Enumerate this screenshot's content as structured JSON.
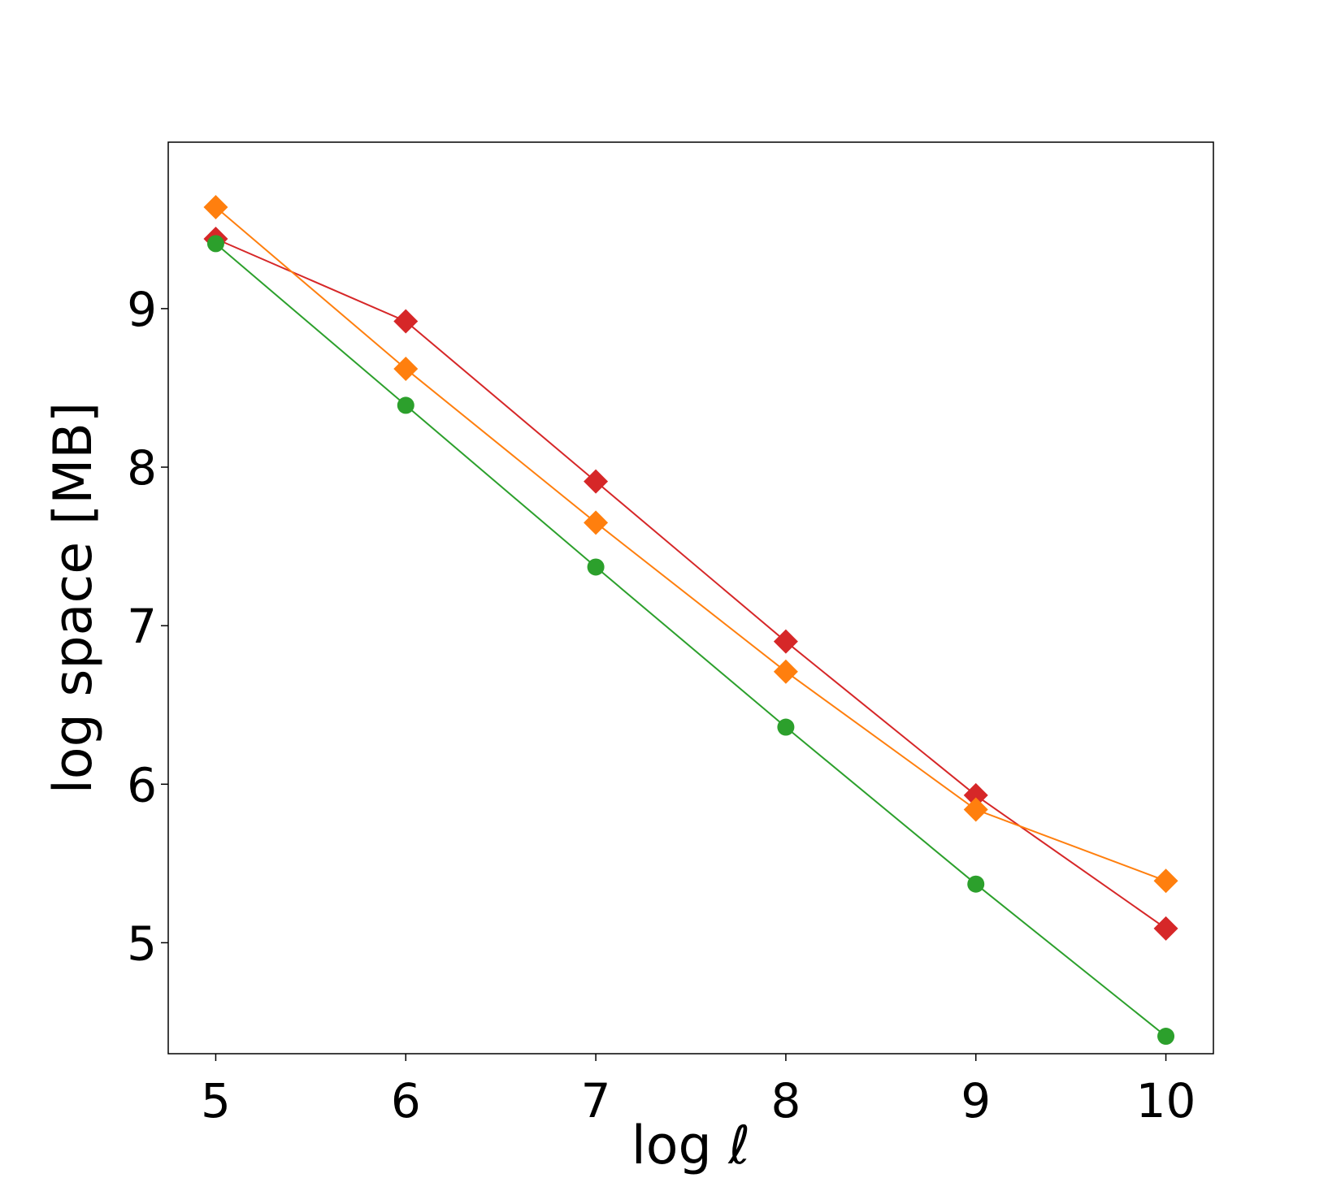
{
  "chart_data": {
    "type": "line",
    "xlabel": "log ℓ",
    "ylabel": "log space [MB]",
    "xlim": [
      4.75,
      10.25
    ],
    "ylim": [
      4.3,
      10.05
    ],
    "xticks": [
      5,
      6,
      7,
      8,
      9,
      10
    ],
    "yticks": [
      5,
      6,
      7,
      8,
      9
    ],
    "xtick_labels": [
      "5",
      "6",
      "7",
      "8",
      "9",
      "10"
    ],
    "ytick_labels": [
      "5",
      "6",
      "7",
      "8",
      "9"
    ],
    "grid": false,
    "legend": "none",
    "x": [
      5,
      6,
      7,
      8,
      9,
      10
    ],
    "series": [
      {
        "color": "#d62728",
        "marker": "diamond",
        "values": [
          9.44,
          8.92,
          7.91,
          6.9,
          5.93,
          5.09
        ]
      },
      {
        "color": "#ff7f0e",
        "marker": "diamond",
        "values": [
          9.64,
          8.62,
          7.65,
          6.71,
          5.84,
          5.39
        ]
      },
      {
        "color": "#2ca02c",
        "marker": "circle",
        "values": [
          9.41,
          8.39,
          7.37,
          6.36,
          5.37,
          4.41
        ]
      }
    ]
  }
}
